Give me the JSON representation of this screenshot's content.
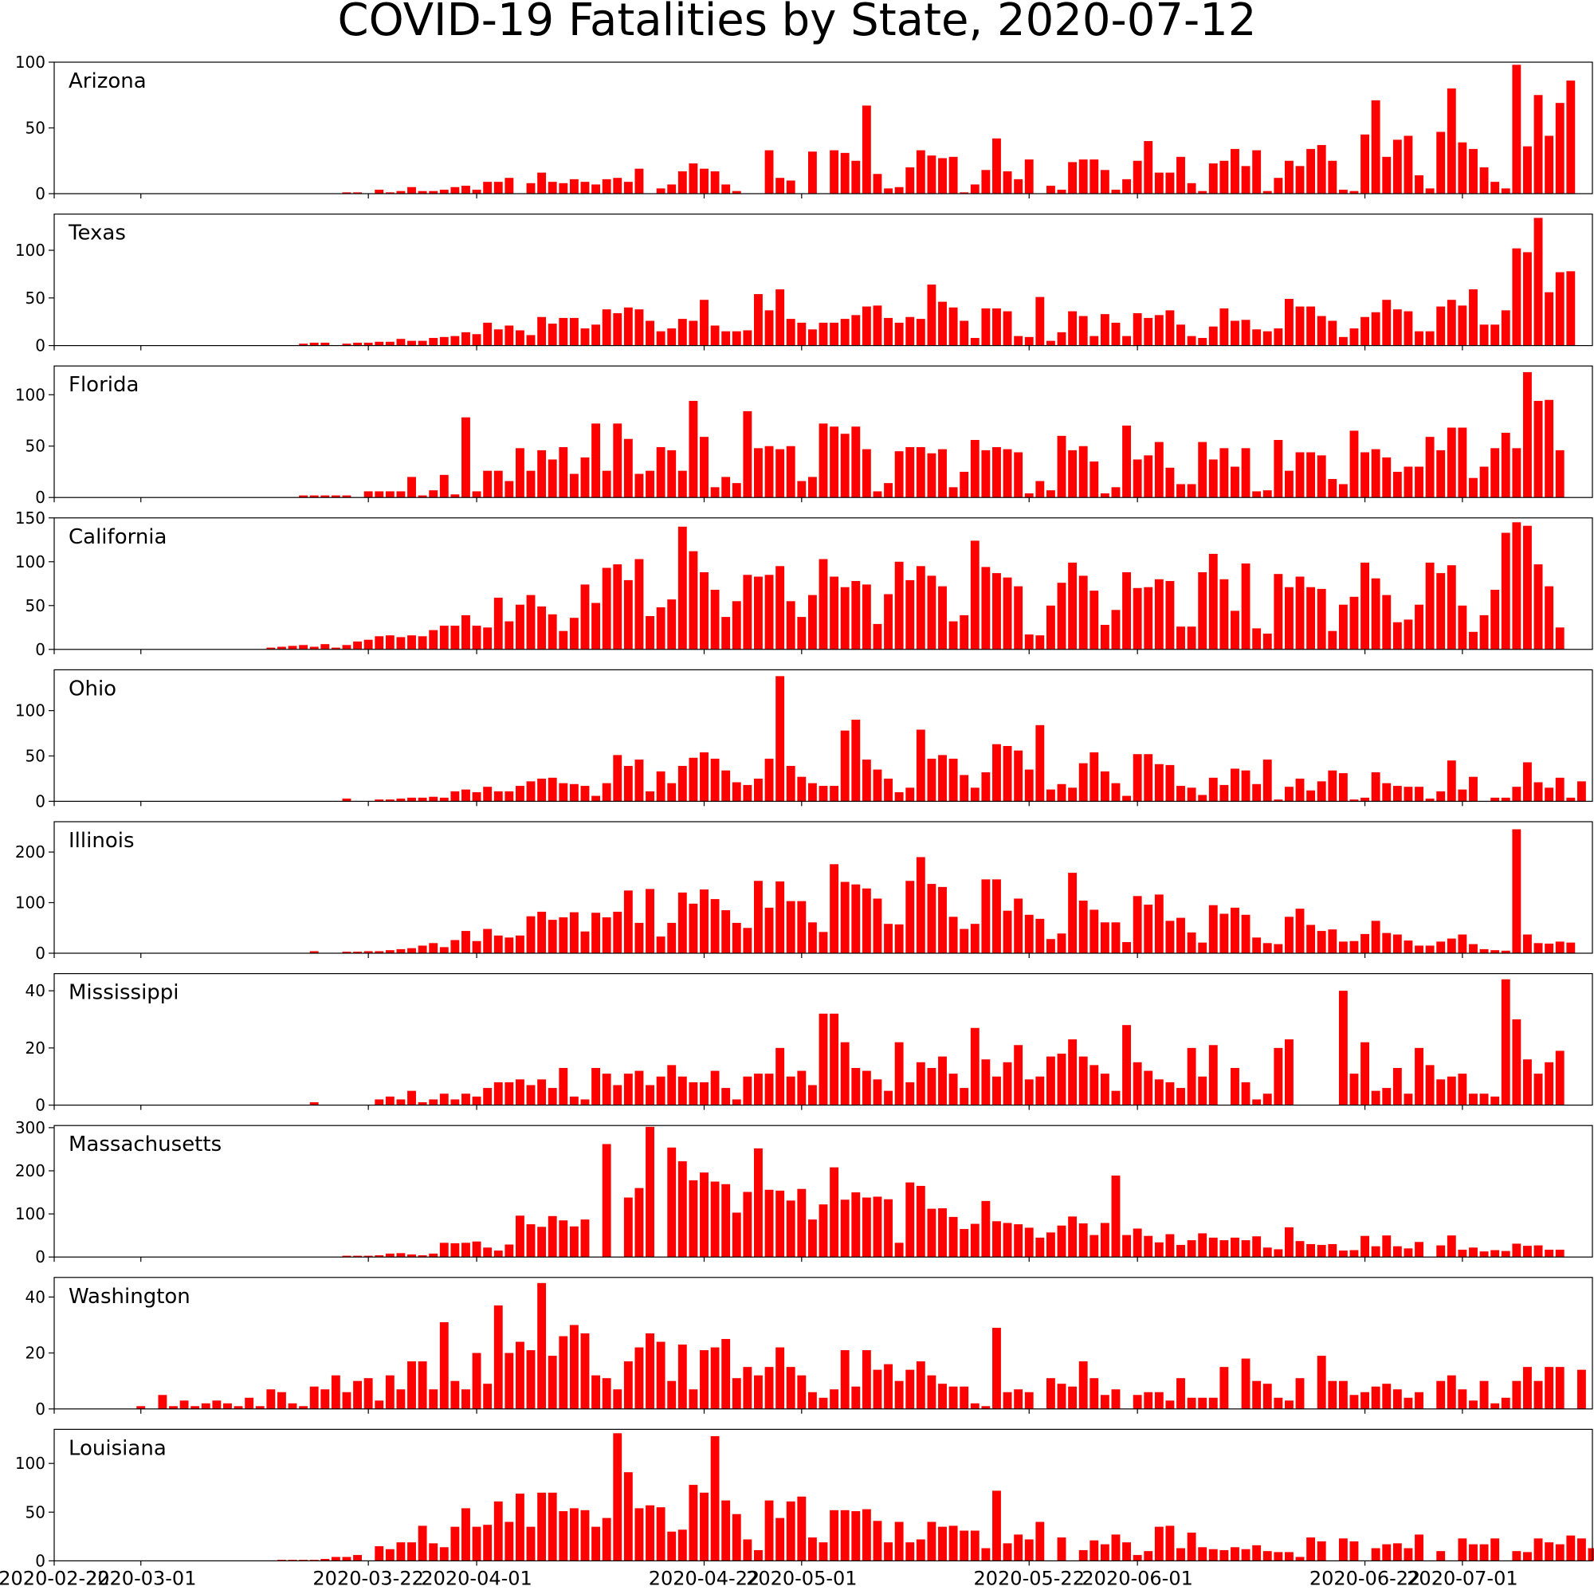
{
  "chart_data": {
    "type": "bar",
    "title": "COVID-19 Fatalities by State, 2020-07-12",
    "bar_color": "#ff0000",
    "x_start_date": "2020-02-22",
    "x_end_date": "2020-07-13",
    "x_tick_labels": [
      "2020-02-22",
      "2020-03-01",
      "2020-03-22",
      "2020-04-01",
      "2020-04-22",
      "2020-05-01",
      "2020-05-22",
      "2020-06-01",
      "2020-06-22",
      "2020-07-01"
    ],
    "x_tick_dates": [
      "2020-02-22",
      "2020-03-01",
      "2020-03-22",
      "2020-04-01",
      "2020-04-22",
      "2020-05-01",
      "2020-05-22",
      "2020-06-01",
      "2020-06-22",
      "2020-07-01"
    ],
    "panels": [
      {
        "state": "Arizona",
        "ylim": [
          0,
          100
        ],
        "yticks": [
          0,
          50,
          100
        ],
        "start_date": "2020-03-20",
        "values": [
          1,
          1,
          0,
          3,
          1,
          2,
          5,
          2,
          2,
          3,
          5,
          6,
          3,
          9,
          9,
          12,
          0,
          8,
          16,
          9,
          8,
          11,
          9,
          7,
          11,
          12,
          9,
          19,
          0,
          4,
          7,
          17,
          23,
          19,
          17,
          7,
          2,
          0,
          0,
          33,
          12,
          10,
          0,
          32,
          0,
          33,
          31,
          25,
          67,
          15,
          4,
          5,
          20,
          33,
          29,
          27,
          28,
          1,
          7,
          18,
          42,
          17,
          11,
          26,
          0,
          6,
          3,
          24,
          26,
          26,
          18,
          3,
          11,
          25,
          40,
          16,
          16,
          28,
          8,
          2,
          23,
          25,
          34,
          21,
          33,
          2,
          12,
          25,
          21,
          34,
          37,
          25,
          3,
          2,
          45,
          71,
          28,
          41,
          44,
          14,
          4,
          47,
          80,
          39,
          34,
          20,
          9,
          4,
          98,
          36,
          75,
          44,
          69,
          86
        ]
      },
      {
        "state": "Texas",
        "ylim": [
          0,
          138
        ],
        "yticks": [
          0,
          50,
          100
        ],
        "start_date": "2020-03-16",
        "values": [
          2,
          3,
          3,
          0,
          2,
          3,
          3,
          4,
          4,
          7,
          5,
          5,
          8,
          9,
          10,
          14,
          12,
          24,
          17,
          21,
          16,
          11,
          30,
          23,
          29,
          29,
          18,
          22,
          38,
          34,
          40,
          38,
          26,
          15,
          18,
          28,
          26,
          48,
          21,
          15,
          15,
          16,
          54,
          37,
          59,
          28,
          24,
          17,
          24,
          24,
          28,
          32,
          41,
          42,
          29,
          24,
          30,
          28,
          64,
          46,
          40,
          26,
          8,
          39,
          39,
          36,
          10,
          9,
          51,
          5,
          14,
          36,
          31,
          10,
          33,
          24,
          10,
          34,
          29,
          32,
          37,
          22,
          10,
          8,
          20,
          39,
          26,
          27,
          17,
          15,
          18,
          49,
          41,
          41,
          31,
          26,
          9,
          18,
          30,
          35,
          48,
          38,
          36,
          15,
          15,
          41,
          48,
          42,
          59,
          22,
          22,
          37,
          102,
          98,
          134,
          56,
          77,
          78
        ]
      },
      {
        "state": "Florida",
        "ylim": [
          0,
          128
        ],
        "yticks": [
          0,
          50,
          100
        ],
        "start_date": "2020-03-16",
        "values": [
          2,
          2,
          2,
          2,
          2,
          0,
          6,
          6,
          6,
          6,
          20,
          2,
          7,
          22,
          3,
          78,
          6,
          26,
          26,
          16,
          48,
          26,
          46,
          37,
          49,
          23,
          39,
          72,
          26,
          72,
          57,
          23,
          26,
          49,
          46,
          26,
          94,
          59,
          10,
          20,
          14,
          84,
          48,
          50,
          47,
          50,
          16,
          20,
          72,
          69,
          62,
          69,
          47,
          6,
          14,
          45,
          49,
          49,
          43,
          47,
          10,
          25,
          56,
          46,
          49,
          47,
          44,
          4,
          16,
          7,
          60,
          46,
          50,
          35,
          4,
          10,
          70,
          37,
          41,
          54,
          29,
          13,
          13,
          54,
          37,
          48,
          30,
          48,
          6,
          7,
          56,
          26,
          44,
          44,
          41,
          18,
          13,
          65,
          44,
          47,
          39,
          25,
          30,
          30,
          59,
          46,
          68,
          68,
          19,
          30,
          48,
          63,
          48,
          122,
          94,
          95,
          46
        ]
      },
      {
        "state": "California",
        "ylim": [
          0,
          150
        ],
        "yticks": [
          0,
          50,
          100,
          150
        ],
        "start_date": "2020-03-13",
        "values": [
          2,
          3,
          4,
          5,
          3,
          6,
          2,
          5,
          9,
          11,
          15,
          16,
          14,
          16,
          15,
          22,
          27,
          27,
          39,
          27,
          25,
          59,
          32,
          51,
          62,
          49,
          40,
          21,
          36,
          74,
          53,
          93,
          97,
          79,
          103,
          38,
          48,
          57,
          140,
          112,
          88,
          68,
          37,
          55,
          85,
          83,
          85,
          95,
          55,
          37,
          62,
          103,
          83,
          71,
          78,
          74,
          29,
          63,
          100,
          79,
          95,
          84,
          72,
          32,
          39,
          124,
          94,
          87,
          82,
          72,
          17,
          16,
          50,
          76,
          99,
          84,
          67,
          28,
          45,
          88,
          70,
          71,
          80,
          78,
          26,
          26,
          88,
          109,
          80,
          44,
          98,
          24,
          18,
          86,
          71,
          83,
          71,
          69,
          21,
          51,
          60,
          99,
          81,
          62,
          31,
          34,
          51,
          99,
          87,
          96,
          50,
          20,
          39,
          68,
          133,
          145,
          141,
          97,
          72,
          25
        ]
      },
      {
        "state": "Ohio",
        "ylim": [
          0,
          145
        ],
        "yticks": [
          0,
          50,
          100
        ],
        "start_date": "2020-03-20",
        "values": [
          3,
          0,
          0,
          2,
          2,
          3,
          4,
          4,
          5,
          4,
          11,
          13,
          10,
          16,
          11,
          11,
          17,
          22,
          25,
          26,
          20,
          19,
          17,
          6,
          20,
          51,
          39,
          46,
          11,
          33,
          20,
          39,
          48,
          54,
          47,
          34,
          21,
          18,
          25,
          47,
          138,
          39,
          27,
          20,
          17,
          17,
          78,
          90,
          46,
          35,
          25,
          10,
          15,
          79,
          47,
          51,
          47,
          29,
          15,
          32,
          63,
          61,
          56,
          35,
          84,
          13,
          19,
          15,
          42,
          54,
          33,
          20,
          6,
          52,
          52,
          41,
          40,
          17,
          15,
          7,
          26,
          18,
          36,
          34,
          19,
          46,
          2,
          16,
          25,
          12,
          22,
          34,
          31,
          2,
          4,
          32,
          20,
          17,
          16,
          16,
          3,
          11,
          45,
          13,
          27,
          0,
          4,
          4,
          16,
          43,
          21,
          15,
          26,
          4,
          22
        ]
      },
      {
        "state": "Illinois",
        "ylim": [
          0,
          260
        ],
        "yticks": [
          0,
          100,
          200
        ],
        "start_date": "2020-03-17",
        "values": [
          4,
          0,
          0,
          3,
          3,
          4,
          4,
          6,
          8,
          10,
          15,
          20,
          12,
          26,
          44,
          24,
          48,
          35,
          31,
          35,
          73,
          82,
          66,
          71,
          81,
          43,
          80,
          71,
          82,
          124,
          60,
          127,
          33,
          60,
          120,
          98,
          126,
          107,
          85,
          60,
          50,
          143,
          90,
          142,
          103,
          103,
          61,
          42,
          176,
          141,
          136,
          128,
          108,
          58,
          57,
          143,
          190,
          137,
          131,
          72,
          48,
          58,
          146,
          146,
          84,
          108,
          76,
          68,
          28,
          39,
          159,
          104,
          86,
          61,
          61,
          22,
          113,
          96,
          116,
          64,
          70,
          41,
          21,
          95,
          78,
          90,
          76,
          31,
          20,
          18,
          72,
          88,
          56,
          44,
          47,
          23,
          24,
          38,
          64,
          40,
          37,
          25,
          15,
          15,
          23,
          29,
          37,
          18,
          8,
          6,
          5,
          245,
          37,
          20,
          19,
          23,
          21
        ]
      },
      {
        "state": "Mississippi",
        "ylim": [
          0,
          46
        ],
        "yticks": [
          0,
          20,
          40
        ],
        "start_date": "2020-03-17",
        "values": [
          1,
          0,
          0,
          0,
          0,
          0,
          2,
          3,
          2,
          5,
          1,
          2,
          4,
          2,
          4,
          3,
          6,
          8,
          8,
          9,
          7,
          9,
          6,
          13,
          3,
          2,
          13,
          11,
          7,
          11,
          12,
          7,
          10,
          14,
          10,
          8,
          8,
          12,
          6,
          2,
          10,
          11,
          11,
          20,
          10,
          12,
          7,
          32,
          32,
          22,
          13,
          12,
          9,
          5,
          22,
          8,
          15,
          13,
          17,
          11,
          6,
          27,
          16,
          10,
          15,
          21,
          9,
          10,
          17,
          18,
          23,
          17,
          14,
          11,
          5,
          28,
          15,
          12,
          9,
          8,
          6,
          20,
          10,
          21,
          0,
          13,
          8,
          2,
          4,
          20,
          23,
          0,
          0,
          0,
          0,
          40,
          11,
          22,
          5,
          6,
          13,
          4,
          20,
          14,
          9,
          10,
          11,
          4,
          4,
          3,
          44,
          30,
          16,
          11,
          15,
          19
        ]
      },
      {
        "state": "Massachusetts",
        "ylim": [
          0,
          305
        ],
        "yticks": [
          0,
          100,
          200,
          300
        ],
        "start_date": "2020-03-20",
        "values": [
          3,
          3,
          3,
          4,
          8,
          9,
          6,
          4,
          8,
          33,
          32,
          33,
          36,
          22,
          15,
          29,
          96,
          76,
          70,
          95,
          85,
          71,
          87,
          0,
          262,
          0,
          138,
          160,
          302,
          0,
          254,
          222,
          178,
          196,
          175,
          169,
          103,
          151,
          252,
          156,
          154,
          131,
          158,
          87,
          122,
          208,
          133,
          150,
          138,
          140,
          134,
          33,
          173,
          165,
          112,
          113,
          93,
          65,
          77,
          130,
          83,
          79,
          76,
          68,
          45,
          57,
          73,
          94,
          78,
          51,
          79,
          189,
          51,
          66,
          49,
          34,
          53,
          28,
          39,
          55,
          45,
          39,
          45,
          39,
          48,
          22,
          18,
          69,
          37,
          30,
          28,
          30,
          15,
          16,
          49,
          25,
          50,
          25,
          20,
          35,
          0,
          27,
          50,
          17,
          22,
          13,
          16,
          14,
          31,
          26,
          27,
          17,
          17
        ]
      },
      {
        "state": "Washington",
        "ylim": [
          0,
          47
        ],
        "yticks": [
          0,
          20,
          40
        ],
        "start_date": "2020-03-01",
        "values": [
          1,
          0,
          5,
          1,
          3,
          1,
          2,
          3,
          2,
          1,
          4,
          1,
          7,
          6,
          2,
          1,
          8,
          7,
          12,
          6,
          10,
          11,
          3,
          12,
          7,
          17,
          17,
          7,
          31,
          10,
          7,
          20,
          9,
          37,
          20,
          24,
          21,
          45,
          19,
          26,
          30,
          27,
          12,
          11,
          7,
          17,
          22,
          27,
          24,
          10,
          23,
          7,
          21,
          22,
          25,
          11,
          15,
          12,
          15,
          22,
          15,
          12,
          6,
          4,
          7,
          21,
          8,
          21,
          14,
          16,
          10,
          14,
          17,
          12,
          9,
          8,
          8,
          2,
          1,
          29,
          6,
          7,
          6,
          0,
          11,
          9,
          8,
          17,
          11,
          5,
          7,
          0,
          5,
          6,
          6,
          3,
          11,
          4,
          4,
          4,
          15,
          0,
          18,
          10,
          9,
          4,
          3,
          11,
          0,
          19,
          10,
          10,
          5,
          6,
          8,
          9,
          7,
          4,
          6,
          0,
          10,
          12,
          7,
          3,
          10,
          2,
          4,
          10,
          15,
          10,
          15,
          15,
          0,
          14
        ]
      },
      {
        "state": "Louisiana",
        "ylim": [
          0,
          135
        ],
        "yticks": [
          0,
          50,
          100
        ],
        "start_date": "2020-03-14",
        "values": [
          1,
          1,
          1,
          1,
          2,
          4,
          4,
          6,
          0,
          15,
          12,
          19,
          19,
          36,
          18,
          14,
          35,
          54,
          35,
          37,
          61,
          40,
          69,
          35,
          70,
          70,
          51,
          54,
          52,
          35,
          44,
          131,
          91,
          54,
          57,
          55,
          30,
          32,
          78,
          70,
          128,
          62,
          48,
          22,
          11,
          62,
          44,
          61,
          66,
          24,
          19,
          52,
          52,
          51,
          53,
          41,
          19,
          40,
          19,
          22,
          40,
          35,
          36,
          31,
          31,
          13,
          72,
          18,
          27,
          22,
          40,
          0,
          24,
          0,
          11,
          21,
          17,
          27,
          19,
          6,
          10,
          35,
          36,
          13,
          29,
          14,
          12,
          11,
          14,
          12,
          16,
          10,
          9,
          9,
          4,
          24,
          20,
          0,
          23,
          20,
          0,
          13,
          17,
          18,
          13,
          27,
          0,
          10,
          0,
          23,
          17,
          17,
          23,
          0,
          10,
          9,
          23,
          19,
          17,
          26,
          23,
          13
        ]
      }
    ]
  }
}
